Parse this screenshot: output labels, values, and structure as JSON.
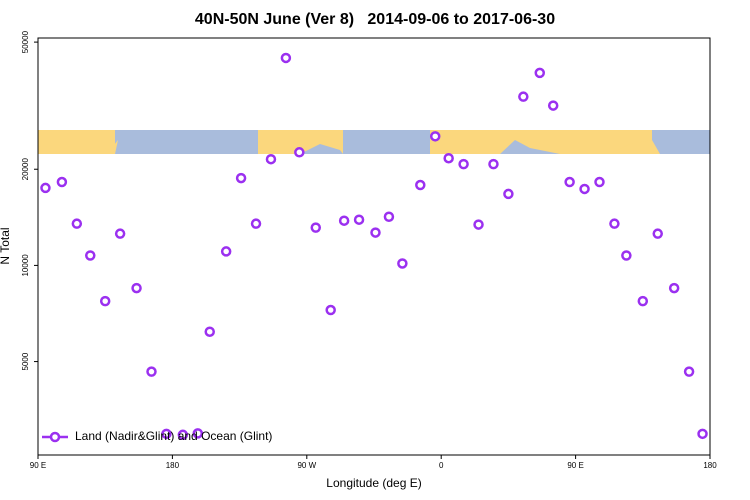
{
  "chart_data": {
    "type": "scatter",
    "title": "40N-50N June (Ver 8)   2014-09-06 to 2017-06-30",
    "xlabel": "Longitude (deg E)",
    "ylabel": "N Total",
    "yscale": "log",
    "legend": "bottom-left",
    "xlim": [
      90,
      540
    ],
    "xticks": [
      {
        "value": 90,
        "label": "90 E"
      },
      {
        "value": 180,
        "label": "180"
      },
      {
        "value": 270,
        "label": "90 W"
      },
      {
        "value": 360,
        "label": "0"
      },
      {
        "value": 450,
        "label": "90 E"
      },
      {
        "value": 540,
        "label": "180"
      }
    ],
    "ylim": [
      2550,
      51500
    ],
    "yticks": [
      5000,
      10000,
      20000,
      50000
    ],
    "x": [
      95,
      106,
      116,
      125,
      135,
      145,
      156,
      166,
      176,
      187,
      197,
      205,
      216,
      226,
      236,
      246,
      256,
      265,
      276,
      286,
      295,
      305,
      316,
      325,
      334,
      346,
      356,
      365,
      375,
      385,
      395,
      405,
      415,
      426,
      435,
      446,
      456,
      466,
      476,
      484,
      495,
      505,
      516,
      526,
      535
    ],
    "series": [
      {
        "name": "Land (Nadir&Glint) and Ocean (Glint)",
        "color": "#9b30f0",
        "values": [
          17480,
          18240,
          13510,
          10740,
          7730,
          12570,
          8490,
          4650,
          2970,
          2950,
          2980,
          6200,
          11060,
          18760,
          13510,
          21500,
          44600,
          22600,
          13130,
          7250,
          13800,
          13900,
          12670,
          14200,
          10140,
          17850,
          25350,
          21650,
          20750,
          13420,
          20750,
          16740,
          33740,
          40050,
          31640,
          18240,
          17350,
          18240,
          13510,
          10740,
          7730,
          12570,
          8490,
          4650,
          2970
        ]
      }
    ]
  }
}
